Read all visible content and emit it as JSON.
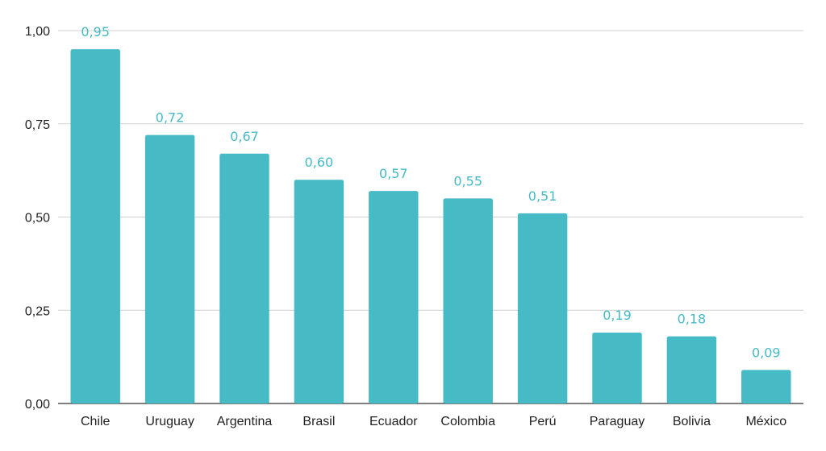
{
  "chart_data": {
    "type": "bar",
    "categories": [
      "Chile",
      "Uruguay",
      "Argentina",
      "Brasil",
      "Ecuador",
      "Colombia",
      "Perú",
      "Paraguay",
      "Bolivia",
      "México"
    ],
    "values": [
      0.95,
      0.72,
      0.67,
      0.6,
      0.57,
      0.55,
      0.51,
      0.19,
      0.18,
      0.09
    ],
    "value_labels": [
      "0,95",
      "0,72",
      "0,67",
      "0,60",
      "0,57",
      "0,55",
      "0,51",
      "0,19",
      "0,18",
      "0,09"
    ],
    "title": "",
    "xlabel": "",
    "ylabel": "",
    "ylim": [
      0,
      1
    ],
    "y_ticks": [
      0,
      0.25,
      0.5,
      0.75,
      1.0
    ],
    "y_tick_labels": [
      "0,00",
      "0,25",
      "0,50",
      "0,75",
      "1,00"
    ],
    "grid": true,
    "legend": "none",
    "bar_color": "#47bbc5",
    "label_color": "#47bbc5"
  }
}
